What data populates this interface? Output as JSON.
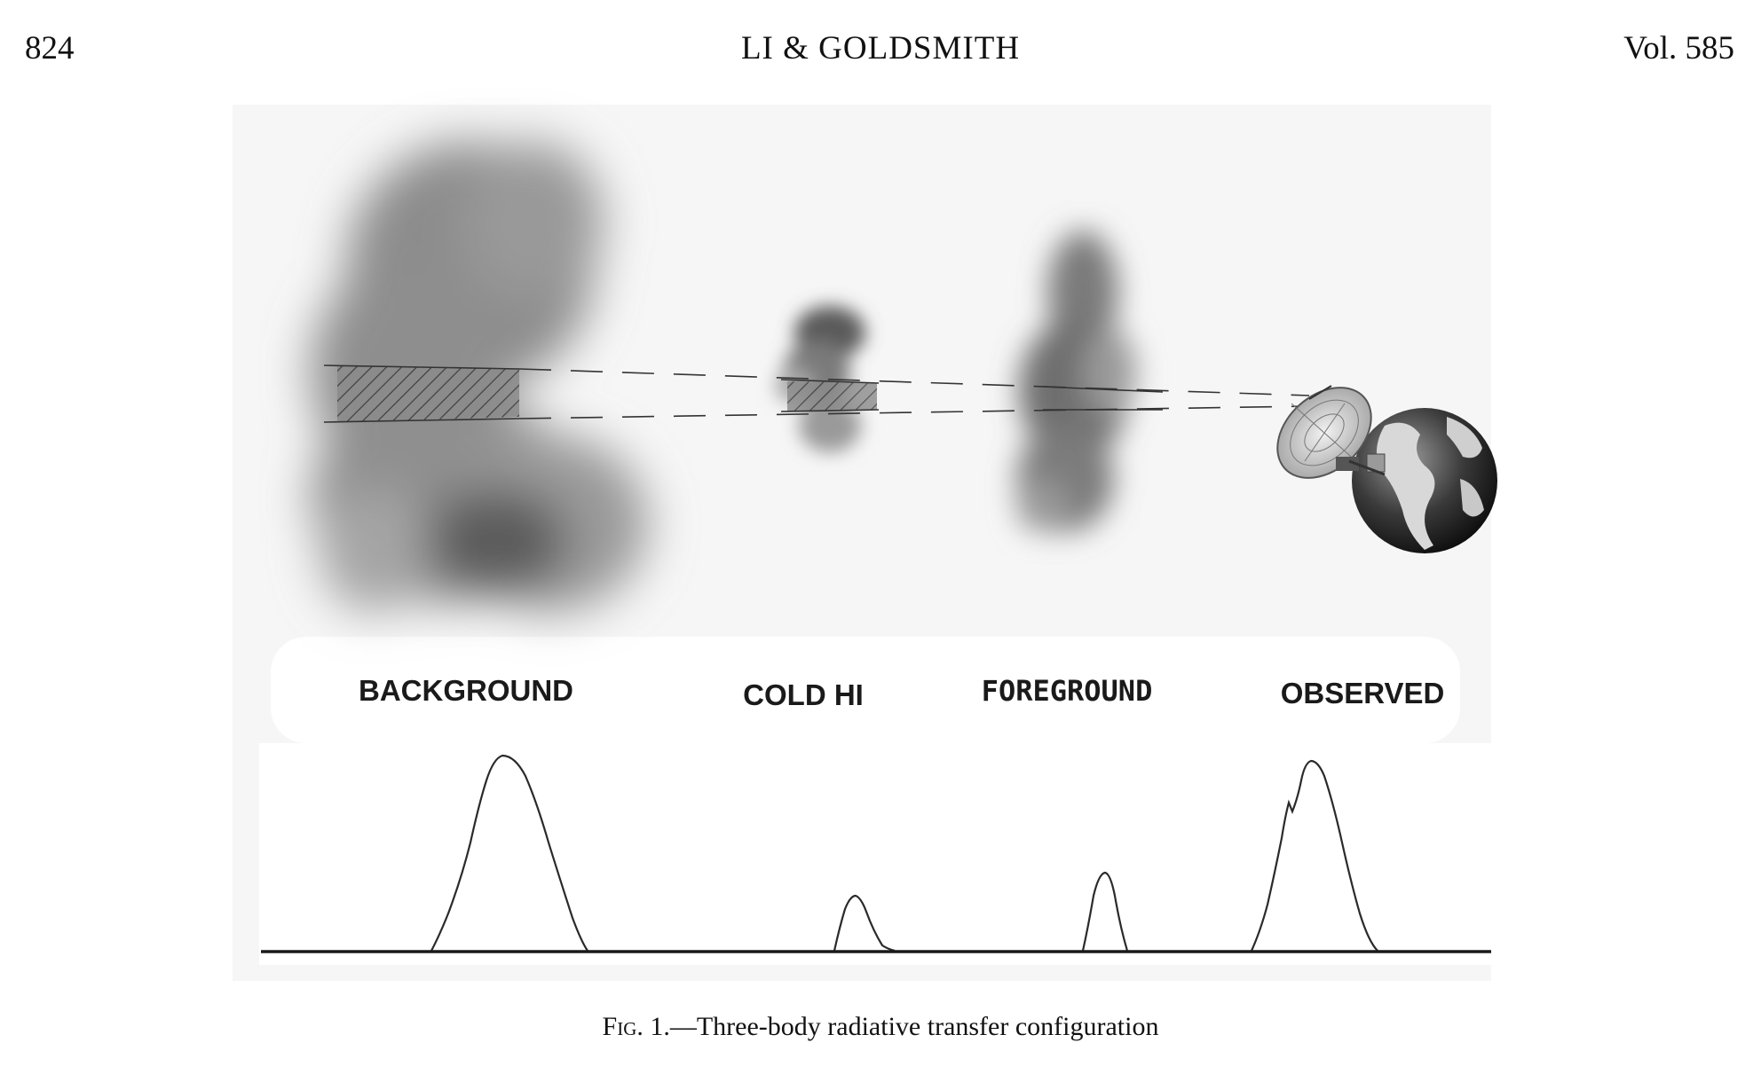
{
  "header": {
    "page_number": "824",
    "running_title": "LI & GOLDSMITH",
    "volume": "Vol. 585"
  },
  "figure": {
    "panel_labels": [
      "BACKGROUND",
      "COLD HI",
      "FOREGROUND",
      "OBSERVED"
    ],
    "icons": [
      "radio-telescope-icon",
      "earth-globe-icon"
    ],
    "colors": {
      "cloud": "#777777",
      "line": "#222222",
      "hatch": "#333333"
    },
    "profiles": [
      {
        "name": "BACKGROUND",
        "peak": 1.0
      },
      {
        "name": "COLD HI",
        "peak": 0.28
      },
      {
        "name": "FOREGROUND",
        "peak": 0.4
      },
      {
        "name": "OBSERVED",
        "peak": 0.96
      }
    ]
  },
  "caption": {
    "label": "Fig. 1.",
    "text": "—Three-body radiative transfer configuration"
  }
}
